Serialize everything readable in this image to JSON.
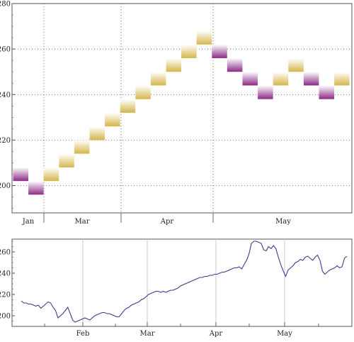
{
  "chart_data": [
    {
      "type": "renko",
      "y_axis": {
        "min": 188,
        "max": 280,
        "ticks": [
          200,
          220,
          240,
          260,
          280
        ]
      },
      "month_labels": [
        "Jan",
        "Mar",
        "Apr",
        "May"
      ],
      "grid": true,
      "colors": {
        "up": "#d4b64a",
        "down": "#8c2a87"
      },
      "bricks": [
        {
          "low": 202,
          "high": 208,
          "dir": "down"
        },
        {
          "low": 196,
          "high": 202,
          "dir": "down"
        },
        {
          "low": 202,
          "high": 208,
          "dir": "up"
        },
        {
          "low": 208,
          "high": 214,
          "dir": "up"
        },
        {
          "low": 214,
          "high": 220,
          "dir": "up"
        },
        {
          "low": 220,
          "high": 226,
          "dir": "up"
        },
        {
          "low": 226,
          "high": 232,
          "dir": "up"
        },
        {
          "low": 232,
          "high": 238,
          "dir": "up"
        },
        {
          "low": 238,
          "high": 244,
          "dir": "up"
        },
        {
          "low": 244,
          "high": 250,
          "dir": "up"
        },
        {
          "low": 250,
          "high": 256,
          "dir": "up"
        },
        {
          "low": 256,
          "high": 262,
          "dir": "up"
        },
        {
          "low": 262,
          "high": 268,
          "dir": "up"
        },
        {
          "low": 256,
          "high": 262,
          "dir": "down"
        },
        {
          "low": 250,
          "high": 256,
          "dir": "down"
        },
        {
          "low": 244,
          "high": 250,
          "dir": "down"
        },
        {
          "low": 238,
          "high": 244,
          "dir": "down"
        },
        {
          "low": 244,
          "high": 250,
          "dir": "up"
        },
        {
          "low": 250,
          "high": 256,
          "dir": "up"
        },
        {
          "low": 244,
          "high": 250,
          "dir": "down"
        },
        {
          "low": 238,
          "high": 244,
          "dir": "down"
        },
        {
          "low": 244,
          "high": 250,
          "dir": "up"
        }
      ]
    },
    {
      "type": "line",
      "y_axis": {
        "min": 190,
        "max": 272,
        "ticks": [
          200,
          220,
          240,
          260
        ]
      },
      "month_labels": [
        "Feb",
        "Mar",
        "Apr",
        "May"
      ],
      "line_color": "#3b3b8f",
      "values": [
        214,
        212,
        212,
        211,
        211,
        210,
        209,
        210,
        207,
        209,
        211,
        213,
        212,
        208,
        205,
        198,
        200,
        202,
        205,
        208,
        202,
        196,
        194,
        195,
        196,
        197,
        198,
        197,
        196,
        198,
        200,
        201,
        202,
        203,
        203,
        202,
        202,
        201,
        200,
        199,
        199,
        202,
        205,
        207,
        208,
        210,
        211,
        212,
        213,
        215,
        216,
        218,
        220,
        221,
        222,
        223,
        223,
        222,
        223,
        222,
        223,
        224,
        224,
        225,
        226,
        228,
        229,
        230,
        231,
        232,
        233,
        234,
        235,
        236,
        236,
        237,
        237,
        238,
        238,
        239,
        239,
        240,
        241,
        241,
        242,
        243,
        244,
        245,
        245,
        246,
        244,
        248,
        252,
        258,
        268,
        270,
        270,
        269,
        268,
        262,
        261,
        265,
        263,
        266,
        263,
        255,
        248,
        242,
        237,
        243,
        245,
        247,
        250,
        251,
        253,
        252,
        255,
        256,
        254,
        252,
        255,
        257,
        252,
        242,
        239,
        241,
        243,
        244,
        245,
        247,
        245,
        246,
        254,
        256
      ]
    }
  ]
}
